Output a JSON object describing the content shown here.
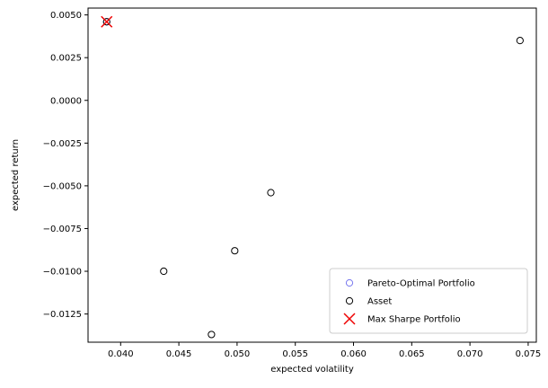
{
  "chart_data": {
    "type": "scatter",
    "title": "",
    "xlabel": "expected volatility",
    "ylabel": "expected return",
    "xlim": [
      0.0372,
      0.0757
    ],
    "ylim": [
      -0.01415,
      0.0054
    ],
    "xticks": [
      0.04,
      0.045,
      0.05,
      0.055,
      0.06,
      0.065,
      0.07,
      0.075
    ],
    "xtick_labels": [
      "0.040",
      "0.045",
      "0.050",
      "0.055",
      "0.060",
      "0.065",
      "0.070",
      "0.075"
    ],
    "yticks": [
      0.005,
      0.0025,
      0.0,
      -0.0025,
      -0.005,
      -0.0075,
      -0.01,
      -0.0125
    ],
    "ytick_labels": [
      "0.0050",
      "0.0025",
      "0.0000",
      "−0.0025",
      "−0.0050",
      "−0.0075",
      "−0.0100",
      "−0.0125"
    ],
    "grid": false,
    "legend_position": "bottom-right",
    "series": [
      {
        "name": "Pareto-Optimal Portfolio",
        "marker": "hollow-circle",
        "color": "#7777ee",
        "points": [
          [
            0.0388,
            0.0046
          ]
        ]
      },
      {
        "name": "Asset",
        "marker": "hollow-circle",
        "color": "#000000",
        "points": [
          [
            0.0388,
            0.0046
          ],
          [
            0.0437,
            -0.01
          ],
          [
            0.0478,
            -0.0137
          ],
          [
            0.0498,
            -0.0088
          ],
          [
            0.0529,
            -0.0054
          ],
          [
            0.0743,
            0.0035
          ]
        ]
      },
      {
        "name": "Max Sharpe Portfolio",
        "marker": "x",
        "color": "#ee0000",
        "points": [
          [
            0.0388,
            0.0046
          ]
        ]
      }
    ]
  }
}
